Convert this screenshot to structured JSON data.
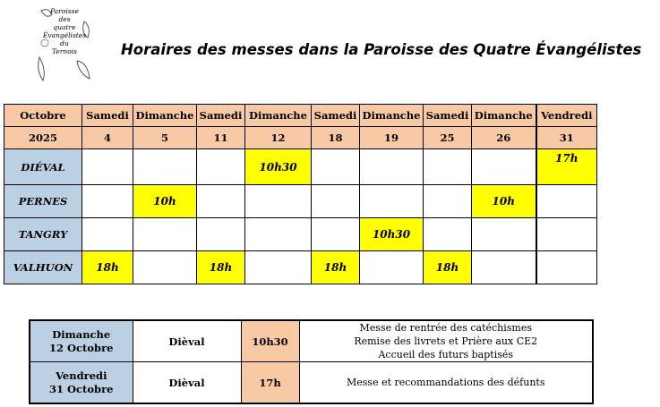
{
  "logo": {
    "lines": [
      "Paroisse",
      "des",
      "quatre",
      "Évangélistes",
      "du",
      "Ternois"
    ]
  },
  "title": "Horaires des messes dans la Paroisse des Quatre Évangélistes",
  "schedule": {
    "month": "Octobre",
    "year": "2025",
    "days": [
      {
        "name": "Samedi",
        "date": "4"
      },
      {
        "name": "Dimanche",
        "date": "5"
      },
      {
        "name": "Samedi",
        "date": "11"
      },
      {
        "name": "Dimanche",
        "date": "12"
      },
      {
        "name": "Samedi",
        "date": "18"
      },
      {
        "name": "Dimanche",
        "date": "19"
      },
      {
        "name": "Samedi",
        "date": "25"
      },
      {
        "name": "Dimanche",
        "date": "26"
      },
      {
        "name": "Vendredi",
        "date": "31"
      }
    ],
    "rows": [
      {
        "place": "DIÉVAL",
        "cells": [
          "",
          "",
          "",
          "10h30",
          "",
          "",
          "",
          "",
          "17h"
        ]
      },
      {
        "place": "PERNES",
        "cells": [
          "",
          "10h",
          "",
          "",
          "",
          "",
          "",
          "10h",
          ""
        ]
      },
      {
        "place": "TANGRY",
        "cells": [
          "",
          "",
          "",
          "",
          "",
          "10h30",
          "",
          "",
          ""
        ]
      },
      {
        "place": "VALHUON",
        "cells": [
          "18h",
          "",
          "18h",
          "",
          "18h",
          "",
          "18h",
          "",
          ""
        ]
      }
    ],
    "highlight_color": "#ffff00",
    "header_color": "#f7c9a5",
    "place_color": "#bcd0e4"
  },
  "events": [
    {
      "day": "Dimanche",
      "date": "12 Octobre",
      "place": "Dièval",
      "time": "10h30",
      "desc": [
        "Messe de rentrée des catéchismes",
        "Remise des livrets et Prière aux CE2",
        "Accueil des futurs baptisés"
      ]
    },
    {
      "day": "Vendredi",
      "date": "31 Octobre",
      "place": "Dièval",
      "time": "17h",
      "desc": [
        "Messe et recommandations des défunts"
      ]
    }
  ]
}
